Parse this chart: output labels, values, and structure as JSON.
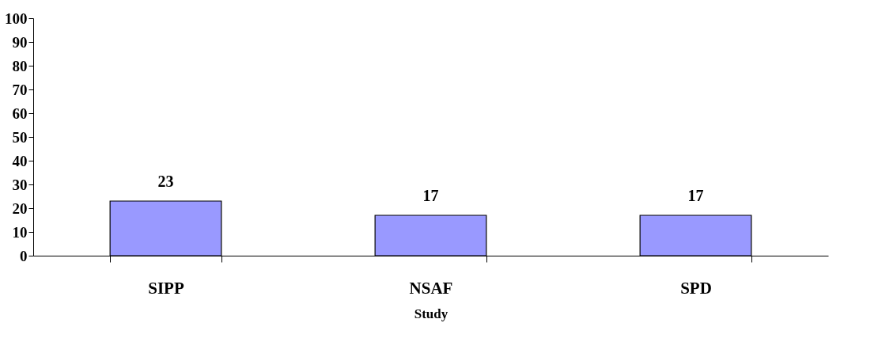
{
  "chart_data": {
    "type": "bar",
    "xlabel": "Study",
    "categories": [
      "SIPP",
      "NSAF",
      "SPD"
    ],
    "values": [
      23,
      17,
      17
    ],
    "color": "#9999ff",
    "ylim": [
      0,
      100
    ],
    "yticks": [
      0,
      10,
      20,
      30,
      40,
      50,
      60,
      70,
      80,
      90,
      100
    ],
    "grid": false,
    "data_labels": true
  }
}
